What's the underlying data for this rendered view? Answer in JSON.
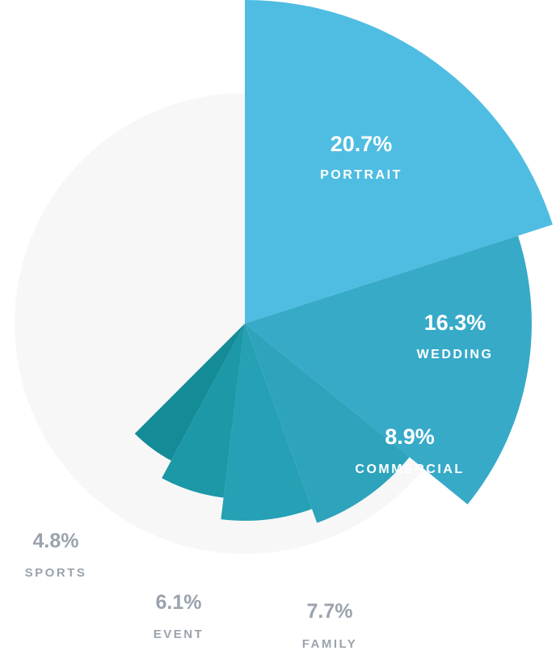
{
  "chart_data": {
    "type": "pie",
    "subtype": "polar-area",
    "background_color": "#f7f7f8",
    "slices": [
      {
        "key": "portrait",
        "label": "PORTRAIT",
        "value": 20.7,
        "pct_label": "20.7%",
        "color": "#4fbde2",
        "label_inside": true
      },
      {
        "key": "wedding",
        "label": "WEDDING",
        "value": 16.3,
        "pct_label": "16.3%",
        "color": "#37aac8",
        "label_inside": true
      },
      {
        "key": "commercial",
        "label": "COMMERCIAL",
        "value": 8.9,
        "pct_label": "8.9%",
        "color": "#2ea3bc",
        "label_inside": true
      },
      {
        "key": "family",
        "label": "FAMILY",
        "value": 7.7,
        "pct_label": "7.7%",
        "color": "#25a0b4",
        "label_inside": false
      },
      {
        "key": "event",
        "label": "EVENT",
        "value": 6.1,
        "pct_label": "6.1%",
        "color": "#1c98a7",
        "label_inside": false
      },
      {
        "key": "sports",
        "label": "SPORTS",
        "value": 4.8,
        "pct_label": "4.8%",
        "color": "#148c98",
        "label_inside": false
      }
    ]
  }
}
